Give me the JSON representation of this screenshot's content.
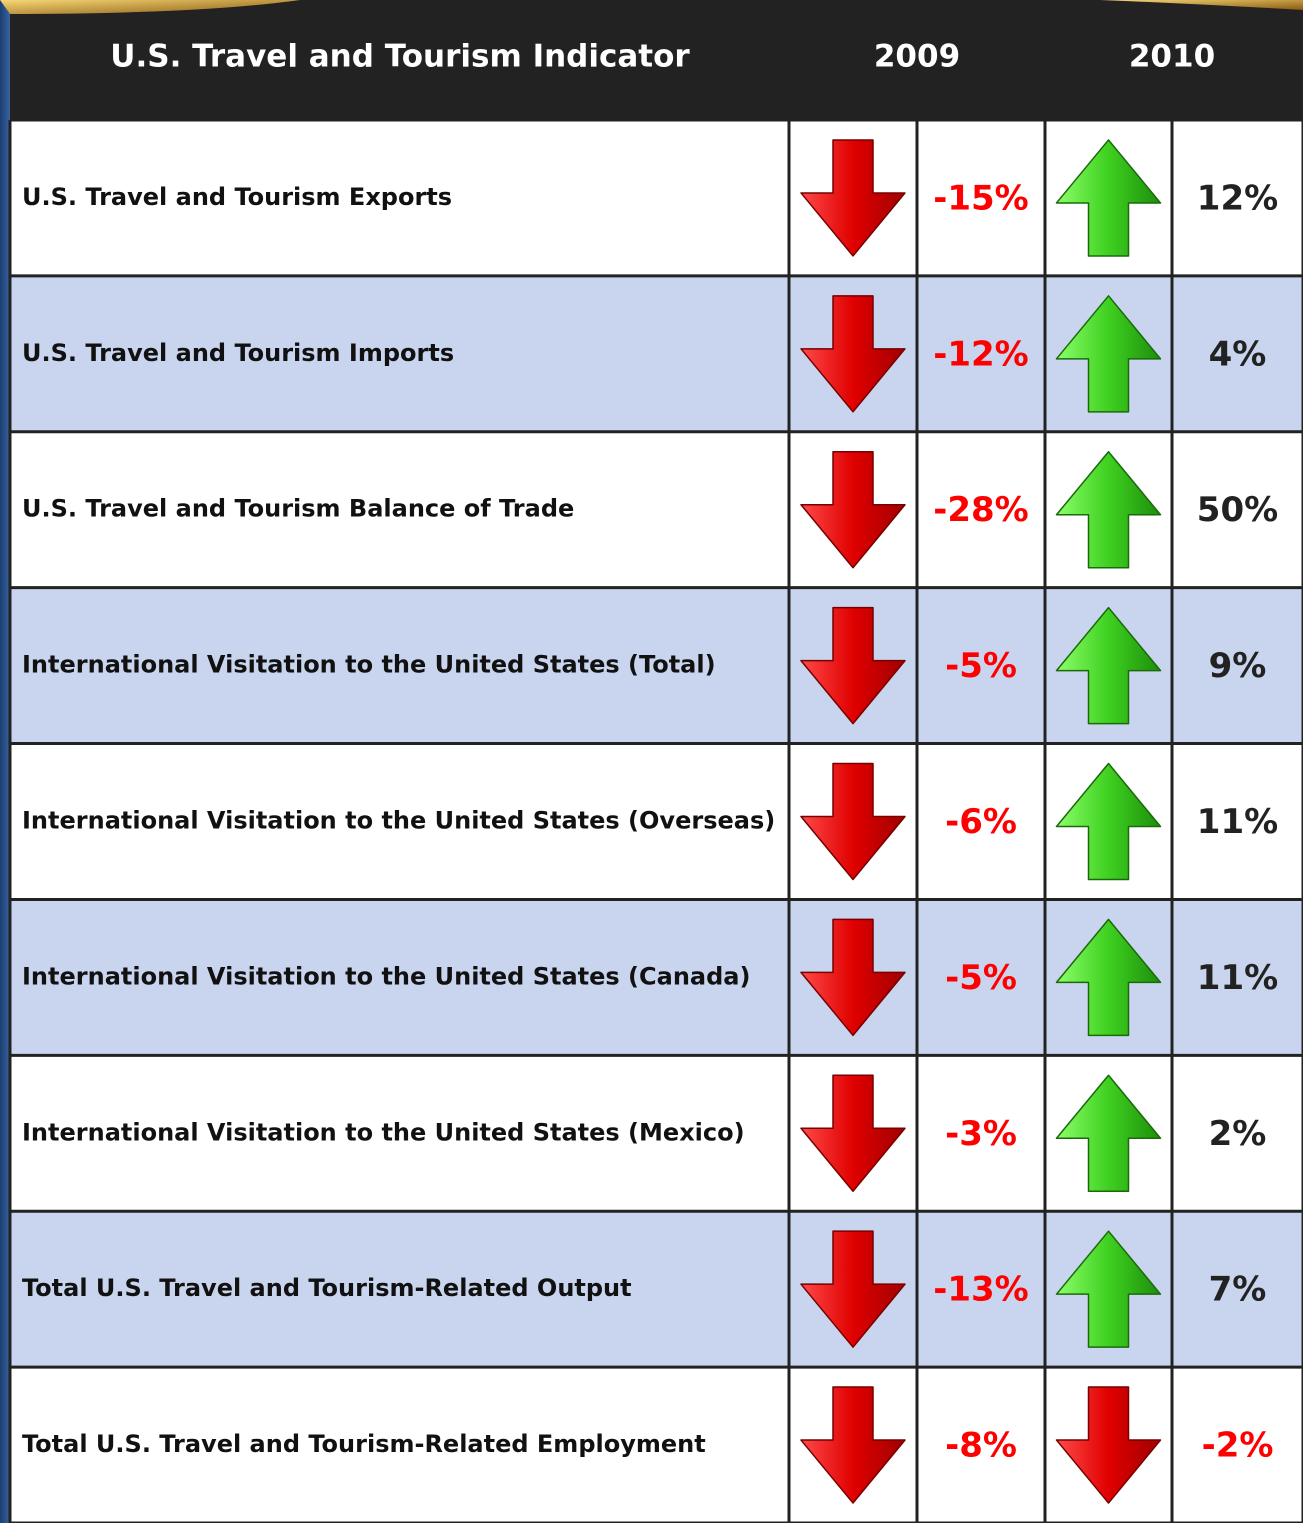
{
  "table": {
    "header": [
      "U.S. Travel and Tourism Indicator",
      "2009",
      "2010"
    ],
    "rows": [
      [
        "U.S. Travel and Tourism Exports",
        "-15%",
        "12%"
      ],
      [
        "U.S. Travel and Tourism Imports",
        "-12%",
        "4%"
      ],
      [
        "U.S. Travel and Tourism Balance of Trade",
        "-28%",
        "50%"
      ],
      [
        "International Visitation to the United States (Total)",
        "-5%",
        "9%"
      ],
      [
        "International Visitation to the United States (Overseas)",
        "-6%",
        "11%"
      ],
      [
        "International Visitation to the United States (Canada)",
        "-5%",
        "11%"
      ],
      [
        "International Visitation to the United States (Mexico)",
        "-3%",
        "2%"
      ],
      [
        "Total U.S. Travel and Tourism-Related Output",
        "-13%",
        "7%"
      ],
      [
        "Total U.S. Travel and Tourism-Related Employment",
        "-8%",
        "-2%"
      ]
    ]
  }
}
